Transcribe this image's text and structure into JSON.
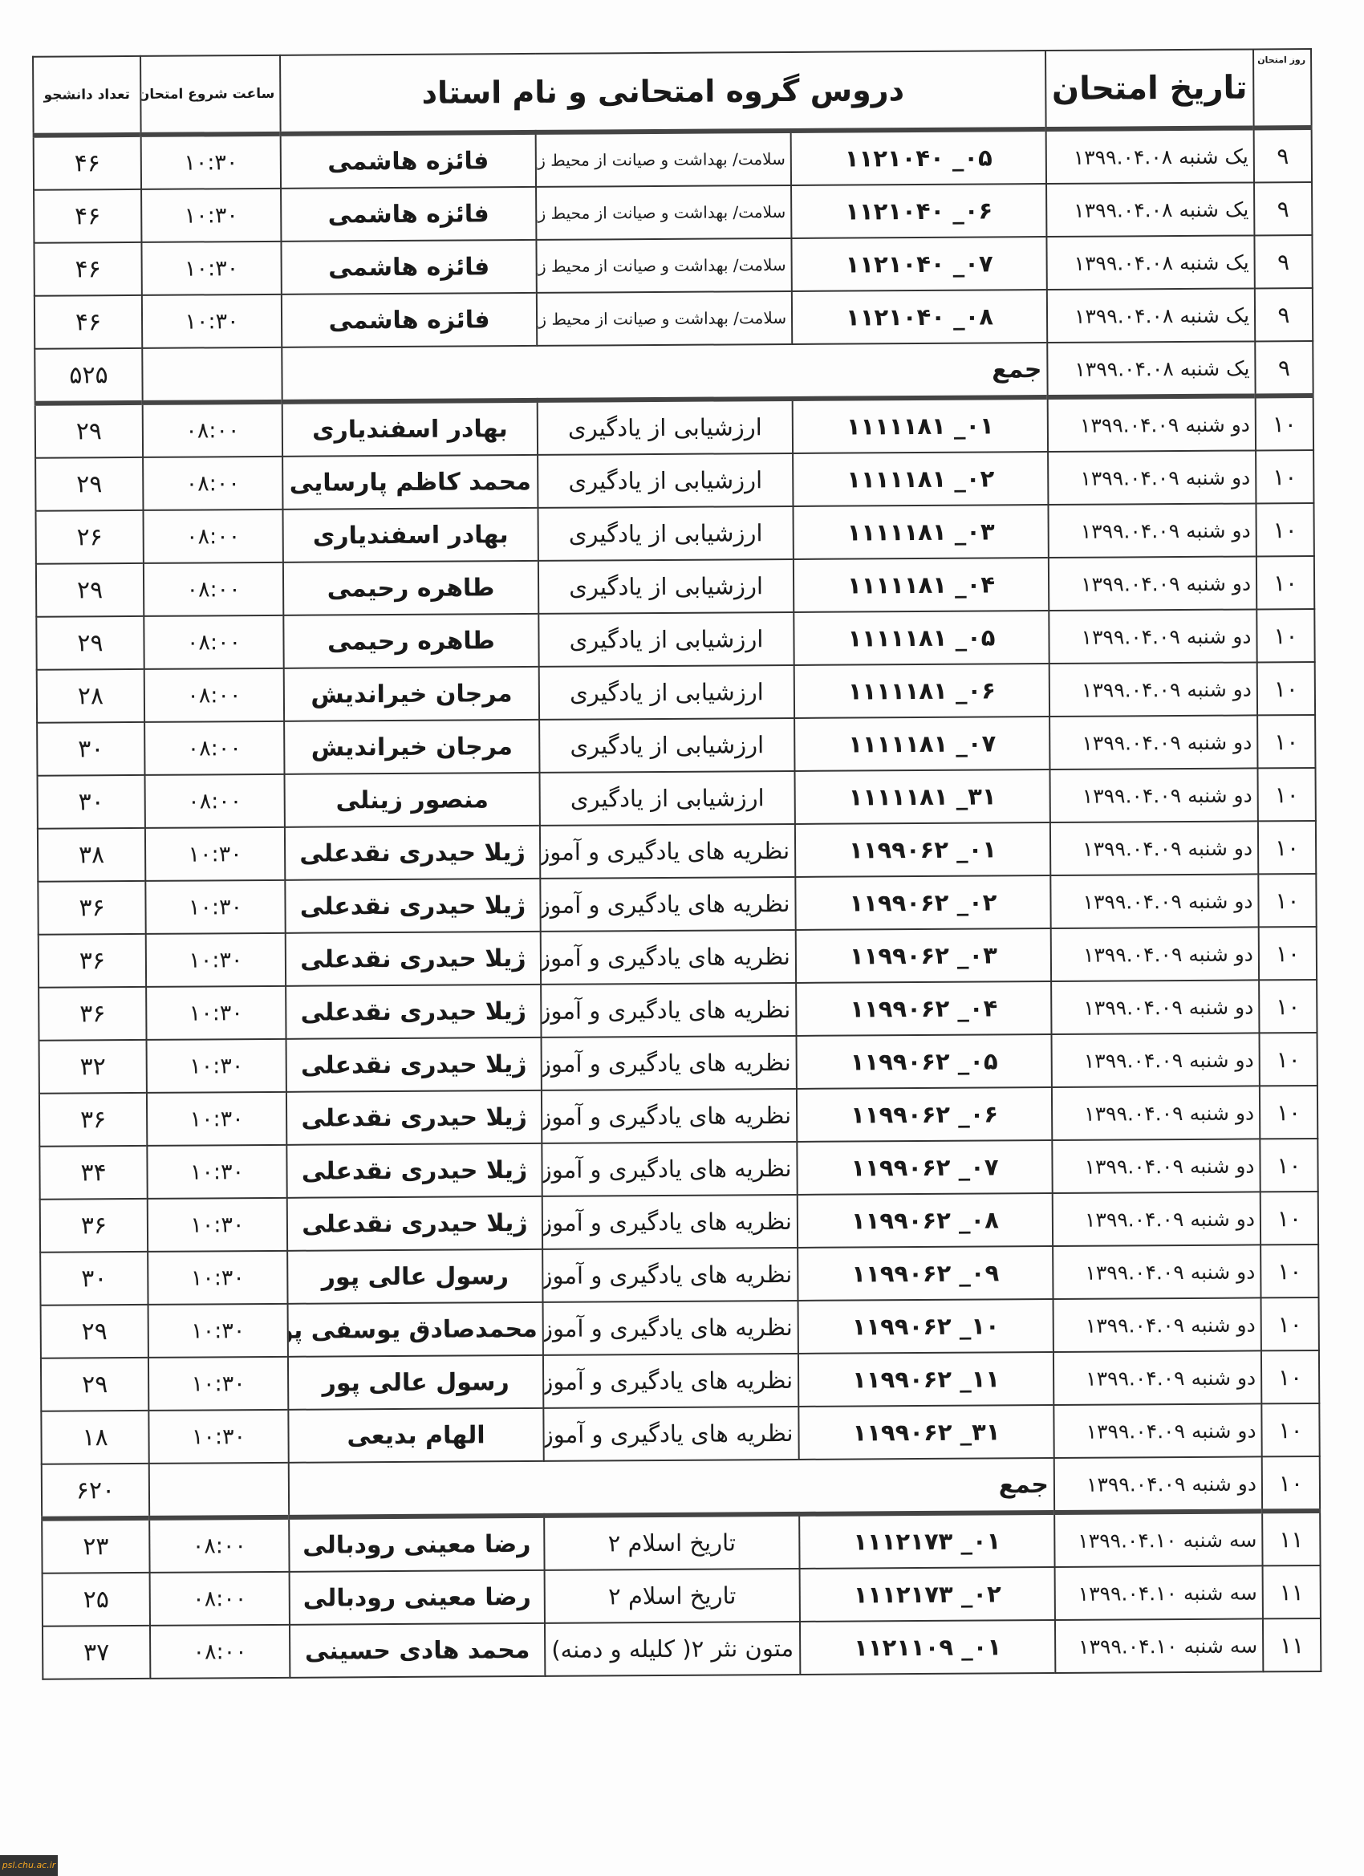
{
  "header": {
    "day": "روز امتحان",
    "date": "تاریخ امتحان",
    "courses": "دروس گروه امتحانی و نام استاد",
    "start_time": "ساعت شروع امتحان",
    "student_count": "تعداد دانشجو"
  },
  "rows": [
    {
      "day": "۹",
      "weekday": "یک شنبه",
      "date": "۱۳۹۹.۰۴.۰۸",
      "code": "۱۱۲۱۰۴۰",
      "group": "۰۵",
      "course": "سلامت/ بهداشت و صیانت از محیط زیست",
      "instructor": "فائزه هاشمی",
      "time": "۱۰:۳۰",
      "count": "۴۶"
    },
    {
      "day": "۹",
      "weekday": "یک شنبه",
      "date": "۱۳۹۹.۰۴.۰۸",
      "code": "۱۱۲۱۰۴۰",
      "group": "۰۶",
      "course": "سلامت/ بهداشت و صیانت از محیط زیست",
      "instructor": "فائزه هاشمی",
      "time": "۱۰:۳۰",
      "count": "۴۶"
    },
    {
      "day": "۹",
      "weekday": "یک شنبه",
      "date": "۱۳۹۹.۰۴.۰۸",
      "code": "۱۱۲۱۰۴۰",
      "group": "۰۷",
      "course": "سلامت/ بهداشت و صیانت از محیط زیست",
      "instructor": "فائزه هاشمی",
      "time": "۱۰:۳۰",
      "count": "۴۶"
    },
    {
      "day": "۹",
      "weekday": "یک شنبه",
      "date": "۱۳۹۹.۰۴.۰۸",
      "code": "۱۱۲۱۰۴۰",
      "group": "۰۸",
      "course": "سلامت/ بهداشت و صیانت از محیط زیست",
      "instructor": "فائزه هاشمی",
      "time": "۱۰:۳۰",
      "count": "۴۶"
    },
    {
      "sum": true,
      "day": "۹",
      "weekday": "یک شنبه",
      "date": "۱۳۹۹.۰۴.۰۸",
      "label": "جمع",
      "count": "۵۲۵"
    },
    {
      "day": "۱۰",
      "weekday": "دو شنبه",
      "date": "۱۳۹۹.۰۴.۰۹",
      "code": "۱۱۱۱۱۸۱",
      "group": "۰۱",
      "course": "ارزشیابی از یادگیری",
      "instructor": "بهادر اسفندیاری",
      "time": "۰۸:۰۰",
      "count": "۲۹"
    },
    {
      "day": "۱۰",
      "weekday": "دو شنبه",
      "date": "۱۳۹۹.۰۴.۰۹",
      "code": "۱۱۱۱۱۸۱",
      "group": "۰۲",
      "course": "ارزشیابی از یادگیری",
      "instructor": "محمد کاظم پارسایی",
      "time": "۰۸:۰۰",
      "count": "۲۹"
    },
    {
      "day": "۱۰",
      "weekday": "دو شنبه",
      "date": "۱۳۹۹.۰۴.۰۹",
      "code": "۱۱۱۱۱۸۱",
      "group": "۰۳",
      "course": "ارزشیابی از یادگیری",
      "instructor": "بهادر اسفندیاری",
      "time": "۰۸:۰۰",
      "count": "۲۶"
    },
    {
      "day": "۱۰",
      "weekday": "دو شنبه",
      "date": "۱۳۹۹.۰۴.۰۹",
      "code": "۱۱۱۱۱۸۱",
      "group": "۰۴",
      "course": "ارزشیابی از یادگیری",
      "instructor": "طاهره رحیمی",
      "time": "۰۸:۰۰",
      "count": "۲۹"
    },
    {
      "day": "۱۰",
      "weekday": "دو شنبه",
      "date": "۱۳۹۹.۰۴.۰۹",
      "code": "۱۱۱۱۱۸۱",
      "group": "۰۵",
      "course": "ارزشیابی از یادگیری",
      "instructor": "طاهره رحیمی",
      "time": "۰۸:۰۰",
      "count": "۲۹"
    },
    {
      "day": "۱۰",
      "weekday": "دو شنبه",
      "date": "۱۳۹۹.۰۴.۰۹",
      "code": "۱۱۱۱۱۸۱",
      "group": "۰۶",
      "course": "ارزشیابی از یادگیری",
      "instructor": "مرجان خیراندیش",
      "time": "۰۸:۰۰",
      "count": "۲۸"
    },
    {
      "day": "۱۰",
      "weekday": "دو شنبه",
      "date": "۱۳۹۹.۰۴.۰۹",
      "code": "۱۱۱۱۱۸۱",
      "group": "۰۷",
      "course": "ارزشیابی از یادگیری",
      "instructor": "مرجان خیراندیش",
      "time": "۰۸:۰۰",
      "count": "۳۰"
    },
    {
      "day": "۱۰",
      "weekday": "دو شنبه",
      "date": "۱۳۹۹.۰۴.۰۹",
      "code": "۱۱۱۱۱۸۱",
      "group": "۳۱",
      "course": "ارزشیابی از یادگیری",
      "instructor": "منصور زینلی",
      "time": "۰۸:۰۰",
      "count": "۳۰"
    },
    {
      "day": "۱۰",
      "weekday": "دو شنبه",
      "date": "۱۳۹۹.۰۴.۰۹",
      "code": "۱۱۹۹۰۶۲",
      "group": "۰۱",
      "course": "نظریه های یادگیری و آموزش",
      "instructor": "ژیلا حیدری نقدعلی",
      "time": "۱۰:۳۰",
      "count": "۳۸"
    },
    {
      "day": "۱۰",
      "weekday": "دو شنبه",
      "date": "۱۳۹۹.۰۴.۰۹",
      "code": "۱۱۹۹۰۶۲",
      "group": "۰۲",
      "course": "نظریه های یادگیری و آموزش",
      "instructor": "ژیلا حیدری نقدعلی",
      "time": "۱۰:۳۰",
      "count": "۳۶"
    },
    {
      "day": "۱۰",
      "weekday": "دو شنبه",
      "date": "۱۳۹۹.۰۴.۰۹",
      "code": "۱۱۹۹۰۶۲",
      "group": "۰۳",
      "course": "نظریه های یادگیری و آموزش",
      "instructor": "ژیلا حیدری نقدعلی",
      "time": "۱۰:۳۰",
      "count": "۳۶"
    },
    {
      "day": "۱۰",
      "weekday": "دو شنبه",
      "date": "۱۳۹۹.۰۴.۰۹",
      "code": "۱۱۹۹۰۶۲",
      "group": "۰۴",
      "course": "نظریه های یادگیری و آموزش",
      "instructor": "ژیلا حیدری نقدعلی",
      "time": "۱۰:۳۰",
      "count": "۳۶"
    },
    {
      "day": "۱۰",
      "weekday": "دو شنبه",
      "date": "۱۳۹۹.۰۴.۰۹",
      "code": "۱۱۹۹۰۶۲",
      "group": "۰۵",
      "course": "نظریه های یادگیری و آموزش",
      "instructor": "ژیلا حیدری نقدعلی",
      "time": "۱۰:۳۰",
      "count": "۳۲"
    },
    {
      "day": "۱۰",
      "weekday": "دو شنبه",
      "date": "۱۳۹۹.۰۴.۰۹",
      "code": "۱۱۹۹۰۶۲",
      "group": "۰۶",
      "course": "نظریه های یادگیری و آموزش",
      "instructor": "ژیلا حیدری نقدعلی",
      "time": "۱۰:۳۰",
      "count": "۳۶"
    },
    {
      "day": "۱۰",
      "weekday": "دو شنبه",
      "date": "۱۳۹۹.۰۴.۰۹",
      "code": "۱۱۹۹۰۶۲",
      "group": "۰۷",
      "course": "نظریه های یادگیری و آموزش",
      "instructor": "ژیلا حیدری نقدعلی",
      "time": "۱۰:۳۰",
      "count": "۳۴"
    },
    {
      "day": "۱۰",
      "weekday": "دو شنبه",
      "date": "۱۳۹۹.۰۴.۰۹",
      "code": "۱۱۹۹۰۶۲",
      "group": "۰۸",
      "course": "نظریه های یادگیری و آموزش",
      "instructor": "ژیلا حیدری نقدعلی",
      "time": "۱۰:۳۰",
      "count": "۳۶"
    },
    {
      "day": "۱۰",
      "weekday": "دو شنبه",
      "date": "۱۳۹۹.۰۴.۰۹",
      "code": "۱۱۹۹۰۶۲",
      "group": "۰۹",
      "course": "نظریه های یادگیری و آموزش",
      "instructor": "رسول عالی پور",
      "time": "۱۰:۳۰",
      "count": "۳۰"
    },
    {
      "day": "۱۰",
      "weekday": "دو شنبه",
      "date": "۱۳۹۹.۰۴.۰۹",
      "code": "۱۱۹۹۰۶۲",
      "group": "۱۰",
      "course": "نظریه های یادگیری و آموزش",
      "instructor": "محمدصادق یوسفی پور",
      "time": "۱۰:۳۰",
      "count": "۲۹"
    },
    {
      "day": "۱۰",
      "weekday": "دو شنبه",
      "date": "۱۳۹۹.۰۴.۰۹",
      "code": "۱۱۹۹۰۶۲",
      "group": "۱۱",
      "course": "نظریه های یادگیری و آموزش",
      "instructor": "رسول عالی پور",
      "time": "۱۰:۳۰",
      "count": "۲۹"
    },
    {
      "day": "۱۰",
      "weekday": "دو شنبه",
      "date": "۱۳۹۹.۰۴.۰۹",
      "code": "۱۱۹۹۰۶۲",
      "group": "۳۱",
      "course": "نظریه های یادگیری و آموزش",
      "instructor": "الهام بدیعی",
      "time": "۱۰:۳۰",
      "count": "۱۸"
    },
    {
      "sum": true,
      "day": "۱۰",
      "weekday": "دو شنبه",
      "date": "۱۳۹۹.۰۴.۰۹",
      "label": "جمع",
      "count": "۶۲۰"
    },
    {
      "day": "۱۱",
      "weekday": "سه شنبه",
      "date": "۱۳۹۹.۰۴.۱۰",
      "code": "۱۱۱۲۱۷۳",
      "group": "۰۱",
      "course": "تاریخ اسلام ۲",
      "instructor": "رضا معینی رودبالی",
      "time": "۰۸:۰۰",
      "count": "۲۳"
    },
    {
      "day": "۱۱",
      "weekday": "سه شنبه",
      "date": "۱۳۹۹.۰۴.۱۰",
      "code": "۱۱۱۲۱۷۳",
      "group": "۰۲",
      "course": "تاریخ اسلام ۲",
      "instructor": "رضا معینی رودبالی",
      "time": "۰۸:۰۰",
      "count": "۲۵"
    },
    {
      "day": "۱۱",
      "weekday": "سه شنبه",
      "date": "۱۳۹۹.۰۴.۱۰",
      "code": "۱۱۲۱۱۰۹",
      "group": "۰۱",
      "course": "متون نثر ۲( کلیله و دمنه)",
      "instructor": "محمد هادی حسینی",
      "time": "۰۸:۰۰",
      "count": "۳۷"
    }
  ],
  "watermark": "psl.chu.ac.ir"
}
